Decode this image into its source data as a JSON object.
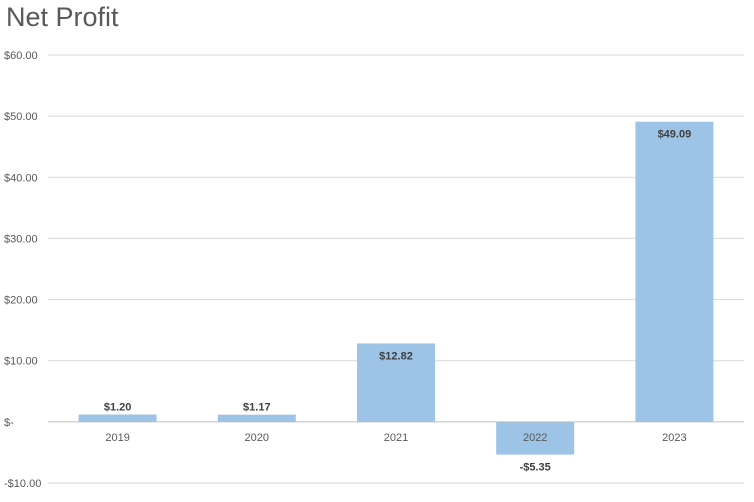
{
  "chart_data": {
    "type": "bar",
    "title": "Net Profit",
    "categories": [
      "2019",
      "2020",
      "2021",
      "2022",
      "2023"
    ],
    "values": [
      1.2,
      1.17,
      12.82,
      -5.35,
      49.09
    ],
    "data_labels": [
      "$1.20",
      "$1.17",
      "$12.82",
      "-$5.35",
      "$49.09"
    ],
    "ylim": [
      -10,
      60
    ],
    "yticks": [
      60,
      50,
      40,
      30,
      20,
      10,
      0,
      -10
    ],
    "ytick_labels": [
      "$60.00",
      "$50.00",
      "$40.00",
      "$30.00",
      "$20.00",
      "$10.00",
      "$-",
      "-$10.00"
    ],
    "grid": true,
    "bar_color": "#9DC3E6",
    "grid_color": "#D9D9D9"
  }
}
